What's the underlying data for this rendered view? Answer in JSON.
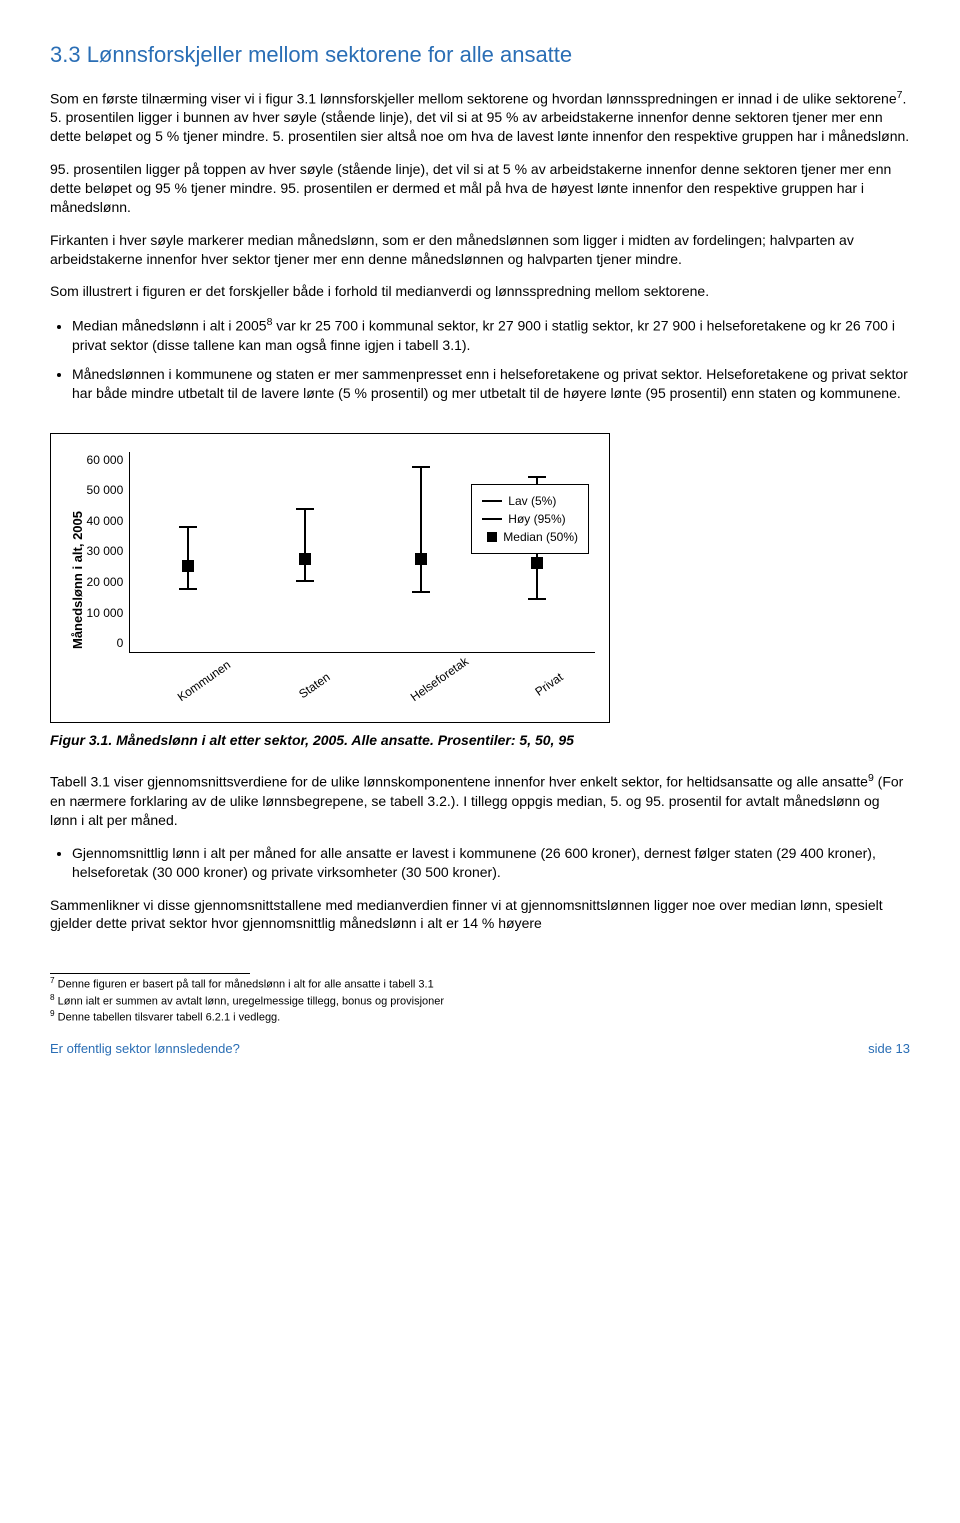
{
  "heading": "3.3  Lønnsforskjeller mellom sektorene for alle ansatte",
  "para1": "Som en første tilnærming viser vi i figur 3.1 lønnsforskjeller mellom sektorene og hvordan lønnsspredningen er innad i de ulike sektorene",
  "para1_sup": "7",
  "para1_tail": ". 5. prosentilen ligger i bunnen av hver søyle (stående linje), det vil si at 95 % av arbeidstakerne innenfor denne sektoren tjener mer enn dette beløpet og 5 % tjener mindre. 5. prosentilen sier altså noe om hva de lavest lønte innenfor den respektive gruppen har i månedslønn.",
  "para2": "95. prosentilen ligger på toppen av hver søyle (stående linje), det vil si at 5 % av arbeidstakerne innenfor denne sektoren tjener mer enn dette beløpet og 95 % tjener mindre. 95. prosentilen er dermed et mål på hva de høyest lønte innenfor den respektive gruppen har i månedslønn.",
  "para3": "Firkanten i hver søyle markerer median månedslønn, som er den månedslønnen som ligger i midten av fordelingen; halvparten av arbeidstakerne innenfor hver sektor tjener mer enn denne månedslønnen og halvparten tjener mindre.",
  "para4": "Som illustrert i figuren er det forskjeller både i forhold til medianverdi og lønnsspredning mellom sektorene.",
  "bullet1a": "Median månedslønn i alt i 2005",
  "bullet1_sup": "8",
  "bullet1b": " var kr 25 700 i kommunal sektor, kr 27 900 i statlig sektor, kr 27 900 i helseforetakene og kr 26 700 i privat sektor (disse tallene kan man også finne igjen i tabell 3.1).",
  "bullet2": "Månedslønnen i kommunene og staten er mer sammenpresset enn i helseforetakene og privat sektor. Helseforetakene og privat sektor har både mindre utbetalt til de lavere lønte (5 % prosentil) og mer utbetalt til de høyere lønte (95 prosentil) enn staten og kommunene.",
  "chart": {
    "type": "boxplot-like",
    "y_label": "Månedslønn i alt, 2005",
    "y_min": 0,
    "y_max": 60000,
    "y_tick_step": 10000,
    "y_ticks": [
      "0",
      "10 000",
      "20 000",
      "30 000",
      "40 000",
      "50 000",
      "60 000"
    ],
    "series_color": "#000000",
    "background_color": "#ffffff",
    "categories": [
      {
        "label": "Kommunen",
        "low": 18500,
        "median": 25700,
        "high": 37000
      },
      {
        "label": "Staten",
        "low": 21000,
        "median": 27900,
        "high": 42500
      },
      {
        "label": "Helseforetak",
        "low": 17500,
        "median": 27900,
        "high": 55000
      },
      {
        "label": "Privat",
        "low": 15500,
        "median": 26700,
        "high": 52000
      }
    ],
    "legend": {
      "low": "Lav (5%)",
      "high": "Høy (95%)",
      "median": "Median (50%)"
    }
  },
  "fig_caption": "Figur 3.1.  Månedslønn i alt etter sektor, 2005. Alle ansatte. Prosentiler: 5, 50, 95",
  "para5a": "Tabell 3.1 viser gjennomsnittsverdiene for de ulike lønnskomponentene innenfor hver enkelt sektor, for heltidsansatte og alle ansatte",
  "para5_sup": "9",
  "para5b": " (For en nærmere forklaring av de ulike lønnsbegrepene, se tabell 3.2.). I tillegg oppgis median, 5. og 95. prosentil for avtalt månedslønn og lønn i alt per måned.",
  "bullet3": "Gjennomsnittlig lønn i alt per måned for alle ansatte er lavest i kommunene (26 600 kroner), dernest følger staten (29 400 kroner), helseforetak (30 000 kroner) og private virksomheter (30 500 kroner).",
  "para6": "Sammenlikner vi disse gjennomsnittstallene med medianverdien finner vi at gjennomsnittslønnen ligger noe over median lønn, spesielt gjelder dette privat sektor hvor gjennomsnittlig månedslønn i alt er 14 % høyere",
  "footnotes": {
    "f7": " Denne figuren er basert på tall for månedslønn i alt for alle ansatte i tabell 3.1",
    "f8": " Lønn ialt er summen av avtalt lønn, uregelmessige tillegg, bonus og provisjoner",
    "f9": " Denne tabellen tilsvarer tabell 6.2.1 i vedlegg."
  },
  "footer_left": "Er offentlig sektor lønnsledende?",
  "footer_right": "side 13"
}
